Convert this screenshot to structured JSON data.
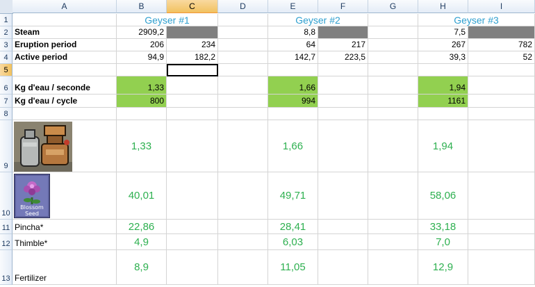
{
  "columns": [
    "A",
    "B",
    "C",
    "D",
    "E",
    "F",
    "G",
    "H",
    "I"
  ],
  "rows": [
    "1",
    "2",
    "3",
    "4",
    "5",
    "6",
    "7",
    "8",
    "9",
    "10",
    "11",
    "12",
    "13"
  ],
  "headers": {
    "g1": "Geyser #1",
    "g2": "Geyser #2",
    "g3": "Geyser #3"
  },
  "labels": {
    "r2": "Steam",
    "r3": "Eruption period",
    "r4": "Active period",
    "r6": "Kg d'eau / seconde",
    "r7": "Kg d'eau / cycle",
    "r11": "Pincha*",
    "r12": "Thimble*",
    "r13": "Fertilizer"
  },
  "values": {
    "B2": "2909,2",
    "E2": "8,8",
    "H2": "7,5",
    "B3": "206",
    "C3": "234",
    "E3": "64",
    "F3": "217",
    "H3": "267",
    "I3": "782",
    "B4": "94,9",
    "C4": "182,2",
    "E4": "142,7",
    "F4": "223,5",
    "H4": "39,3",
    "I4": "52",
    "B6": "1,33",
    "E6": "1,66",
    "H6": "1,94",
    "B7": "800",
    "E7": "994",
    "H7": "1161",
    "B9": "1,33",
    "E9": "1,66",
    "H9": "1,94",
    "B10": "40,01",
    "E10": "49,71",
    "H10": "58,06",
    "B11": "22,86",
    "E11": "28,41",
    "H11": "33,18",
    "B12": "4,9",
    "E12": "6,03",
    "H12": "7,0",
    "B13": "8,9",
    "E13": "11,05",
    "H13": "12,9"
  },
  "images": {
    "seed_caption": "Blossom Seed"
  },
  "selection": {
    "active_cell": "C5",
    "selected_column": "C",
    "selected_row": "5"
  },
  "colors": {
    "fill_green": "#92d050",
    "fill_gray": "#808080",
    "text_blue": "#2e9fcf",
    "text_green": "#2eb050"
  }
}
